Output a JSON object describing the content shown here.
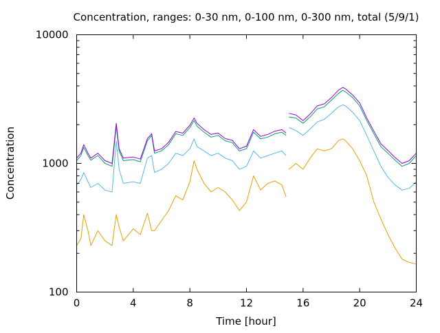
{
  "chart_data": {
    "type": "line",
    "title": "Concentration, ranges: 0-30 nm, 0-100 nm, 0-300 nm, total (5/9/1)",
    "xlabel": "Time [hour]",
    "ylabel": "Concentration",
    "xlim": [
      0,
      24
    ],
    "ylim": [
      100,
      10000
    ],
    "yscale": "log",
    "grid": false,
    "legend": "none",
    "x_ticks": [
      "0",
      "4",
      "8",
      "12",
      "16",
      "20",
      "24"
    ],
    "y_ticks": [
      "100",
      "1000",
      "10000"
    ],
    "series": [
      {
        "color": "#e69f00",
        "x": [
          0,
          0.3,
          0.5,
          0.8,
          1.0,
          1.5,
          2.0,
          2.5,
          2.8,
          3.0,
          3.3,
          4.0,
          4.5,
          5.0,
          5.3,
          5.5,
          6.0,
          6.5,
          7.0,
          7.5,
          8.0,
          8.3,
          8.5,
          9.0,
          9.5,
          10.0,
          10.5,
          11.0,
          11.5,
          12.0,
          12.5,
          13.0,
          13.5,
          14.0,
          14.5,
          14.8,
          15.0,
          15.5,
          16.0,
          16.5,
          17.0,
          17.5,
          18.0,
          18.5,
          18.8,
          19.0,
          19.5,
          20.0,
          20.5,
          21.0,
          21.5,
          22.0,
          22.5,
          23.0,
          23.5,
          24.0
        ],
        "y": [
          230,
          260,
          400,
          300,
          230,
          300,
          250,
          230,
          400,
          320,
          250,
          310,
          280,
          410,
          300,
          300,
          360,
          430,
          560,
          520,
          720,
          1050,
          900,
          700,
          600,
          650,
          600,
          520,
          430,
          500,
          800,
          620,
          700,
          730,
          680,
          550,
          900,
          1000,
          900,
          1100,
          1300,
          1250,
          1300,
          1500,
          1550,
          1500,
          1300,
          1050,
          800,
          500,
          370,
          280,
          220,
          180,
          170,
          165
        ]
      },
      {
        "color": "#56b4e9",
        "x": [
          0,
          0.3,
          0.5,
          0.8,
          1.0,
          1.5,
          2.0,
          2.5,
          2.8,
          3.0,
          3.3,
          4.0,
          4.5,
          5.0,
          5.3,
          5.5,
          6.0,
          6.5,
          7.0,
          7.5,
          8.0,
          8.3,
          8.5,
          9.0,
          9.5,
          10.0,
          10.5,
          11.0,
          11.5,
          12.0,
          12.5,
          13.0,
          13.5,
          14.0,
          14.5,
          14.8,
          15.0,
          15.5,
          16.0,
          16.5,
          17.0,
          17.5,
          18.0,
          18.5,
          18.8,
          19.0,
          19.5,
          20.0,
          20.5,
          21.0,
          21.5,
          22.0,
          22.5,
          23.0,
          23.5,
          24.0
        ],
        "y": [
          680,
          750,
          850,
          720,
          650,
          700,
          620,
          600,
          1500,
          900,
          700,
          720,
          700,
          1100,
          1150,
          850,
          900,
          1000,
          1200,
          1150,
          1300,
          1550,
          1350,
          1250,
          1150,
          1200,
          1100,
          1050,
          900,
          950,
          1250,
          1100,
          1150,
          1200,
          1250,
          1150,
          1900,
          1800,
          1650,
          1850,
          2100,
          2200,
          2450,
          2750,
          2850,
          2800,
          2500,
          2150,
          1650,
          1250,
          950,
          780,
          680,
          620,
          640,
          720
        ]
      },
      {
        "color": "#009e73",
        "x": [
          0,
          0.3,
          0.5,
          0.8,
          1.0,
          1.5,
          2.0,
          2.5,
          2.8,
          3.0,
          3.3,
          4.0,
          4.5,
          5.0,
          5.3,
          5.5,
          6.0,
          6.5,
          7.0,
          7.5,
          8.0,
          8.3,
          8.5,
          9.0,
          9.5,
          10.0,
          10.5,
          11.0,
          11.5,
          12.0,
          12.5,
          13.0,
          13.5,
          14.0,
          14.5,
          14.8,
          15.0,
          15.5,
          16.0,
          16.5,
          17.0,
          17.5,
          18.0,
          18.5,
          18.8,
          19.0,
          19.5,
          20.0,
          20.5,
          21.0,
          21.5,
          22.0,
          22.5,
          23.0,
          23.5,
          24.0
        ],
        "y": [
          1050,
          1150,
          1330,
          1150,
          1060,
          1150,
          1000,
          950,
          1950,
          1250,
          1050,
          1070,
          1030,
          1500,
          1650,
          1200,
          1250,
          1400,
          1700,
          1650,
          1900,
          2150,
          1950,
          1750,
          1600,
          1650,
          1500,
          1450,
          1250,
          1300,
          1750,
          1550,
          1600,
          1700,
          1750,
          1650,
          2300,
          2250,
          2050,
          2300,
          2650,
          2750,
          3100,
          3500,
          3700,
          3600,
          3250,
          2800,
          2150,
          1700,
          1350,
          1200,
          1060,
          950,
          1000,
          1150
        ]
      },
      {
        "color": "#9400d3",
        "x": [
          0,
          0.3,
          0.5,
          0.8,
          1.0,
          1.5,
          2.0,
          2.5,
          2.8,
          3.0,
          3.3,
          4.0,
          4.5,
          5.0,
          5.3,
          5.5,
          6.0,
          6.5,
          7.0,
          7.5,
          8.0,
          8.3,
          8.5,
          9.0,
          9.5,
          10.0,
          10.5,
          11.0,
          11.5,
          12.0,
          12.5,
          13.0,
          13.5,
          14.0,
          14.5,
          14.8,
          15.0,
          15.5,
          16.0,
          16.5,
          17.0,
          17.5,
          18.0,
          18.5,
          18.8,
          19.0,
          19.5,
          20.0,
          20.5,
          21.0,
          21.5,
          22.0,
          22.5,
          23.0,
          23.5,
          24.0
        ],
        "y": [
          1100,
          1200,
          1400,
          1200,
          1100,
          1200,
          1050,
          1000,
          2050,
          1300,
          1100,
          1120,
          1080,
          1560,
          1700,
          1250,
          1300,
          1460,
          1770,
          1720,
          1980,
          2250,
          2050,
          1830,
          1680,
          1720,
          1560,
          1510,
          1300,
          1360,
          1830,
          1620,
          1680,
          1780,
          1830,
          1720,
          2450,
          2380,
          2150,
          2420,
          2800,
          2900,
          3250,
          3700,
          3900,
          3800,
          3400,
          2950,
          2250,
          1780,
          1420,
          1260,
          1110,
          1000,
          1050,
          1200
        ]
      }
    ]
  }
}
